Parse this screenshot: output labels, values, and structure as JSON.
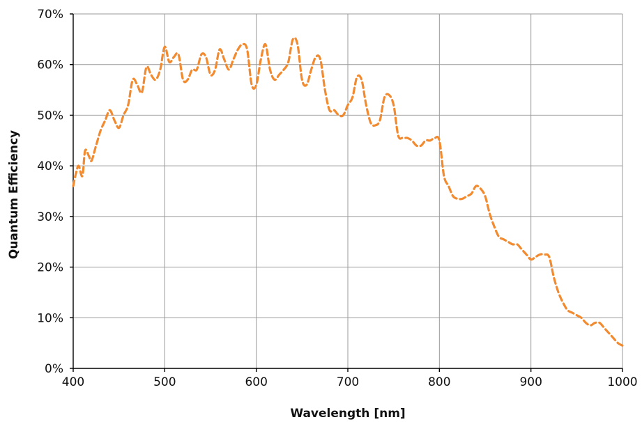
{
  "chart_data": {
    "type": "line",
    "title": "",
    "xlabel": "Wavelength [nm]",
    "ylabel": "Quantum Efficiency",
    "xlim": [
      400,
      1000
    ],
    "ylim": [
      0,
      70
    ],
    "x_ticks": [
      400,
      500,
      600,
      700,
      800,
      900,
      1000
    ],
    "y_ticks": [
      0,
      10,
      20,
      30,
      40,
      50,
      60,
      70
    ],
    "y_tick_labels": [
      "0%",
      "10%",
      "20%",
      "30%",
      "40%",
      "50%",
      "60%",
      "70%"
    ],
    "grid": true,
    "legend": "none",
    "series": [
      {
        "color": "#F28A30",
        "line_style": "dashed",
        "x": [
          400,
          403,
          406,
          410,
          413,
          417,
          420,
          425,
          430,
          435,
          440,
          445,
          450,
          455,
          460,
          465,
          470,
          475,
          480,
          485,
          490,
          495,
          500,
          505,
          510,
          515,
          520,
          525,
          530,
          535,
          540,
          545,
          550,
          555,
          560,
          565,
          570,
          575,
          580,
          585,
          590,
          595,
          600,
          605,
          610,
          615,
          620,
          625,
          630,
          635,
          640,
          645,
          650,
          655,
          660,
          665,
          670,
          675,
          680,
          685,
          690,
          695,
          700,
          705,
          710,
          715,
          720,
          725,
          730,
          735,
          740,
          745,
          750,
          755,
          760,
          765,
          770,
          775,
          780,
          785,
          790,
          795,
          800,
          805,
          810,
          815,
          820,
          825,
          830,
          835,
          840,
          845,
          850,
          855,
          860,
          865,
          870,
          875,
          880,
          885,
          890,
          895,
          900,
          905,
          910,
          915,
          920,
          925,
          930,
          935,
          940,
          945,
          950,
          955,
          960,
          965,
          970,
          975,
          980,
          985,
          990,
          995,
          1000
        ],
        "y": [
          36,
          38.5,
          40,
          38,
          43,
          42,
          41,
          44,
          47,
          49,
          51,
          49,
          47.5,
          50,
          52,
          57,
          56,
          54.5,
          59.5,
          58,
          57,
          59,
          63.5,
          60.5,
          61.5,
          62,
          57,
          57,
          59,
          59,
          62,
          61.5,
          58,
          59,
          63,
          61,
          59,
          61,
          63,
          64,
          63,
          56,
          56,
          61,
          64,
          59,
          57,
          58,
          59,
          60.5,
          65,
          64,
          57,
          56,
          59,
          61.5,
          61,
          55,
          51,
          51,
          50,
          50,
          52,
          53.5,
          57.5,
          57,
          52,
          48.5,
          48,
          49,
          53.5,
          54,
          52,
          46,
          45.5,
          45.5,
          45,
          44,
          44,
          45,
          45,
          45.5,
          45,
          38,
          36,
          34,
          33.5,
          33.5,
          34,
          34.5,
          36,
          35.5,
          34,
          30.5,
          28,
          26,
          25.5,
          25,
          24.5,
          24.5,
          23.5,
          22.5,
          21.5,
          22,
          22.5,
          22.5,
          22,
          18,
          15,
          13,
          11.5,
          11,
          10.5,
          10,
          9,
          8.5,
          9,
          9,
          8,
          7,
          6,
          5,
          4.5
        ]
      }
    ]
  }
}
